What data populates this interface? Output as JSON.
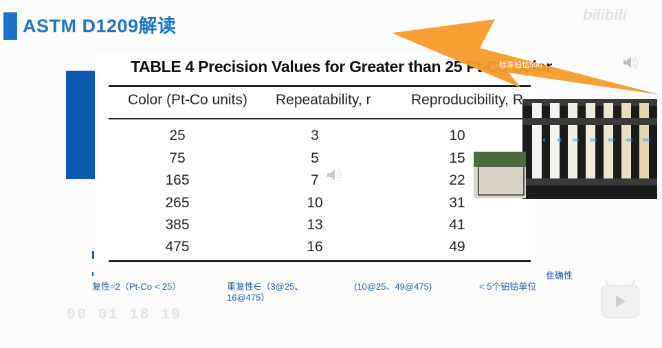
{
  "slide": {
    "title": "ASTM D1209解读",
    "watermark": "bilibili"
  },
  "table": {
    "title": "TABLE 4  Precision Values for Greater than 25 Pt-Co Color",
    "headers": [
      "Color (Pt-Co units)",
      "Repeatability, r",
      "Reproducibility, R"
    ],
    "rows": [
      [
        "25",
        "3",
        "10"
      ],
      [
        "75",
        "5",
        "15"
      ],
      [
        "165",
        "7",
        "22"
      ],
      [
        "265",
        "10",
        "31"
      ],
      [
        "385",
        "13",
        "41"
      ],
      [
        "475",
        "16",
        "49"
      ]
    ]
  },
  "annotation": {
    "arrow_label": "标准铂钴500"
  },
  "photo": {
    "tube_labels": [
      "0",
      "30",
      "100",
      "200",
      "300",
      "400",
      "500"
    ]
  },
  "bottom_notes": {
    "note1": "复性=2（Pt-Co < 25）",
    "note2": "重复性∈（3@25、16@475）",
    "note3": "(10@25、49@475)",
    "note4": "< 5个铂钴单位",
    "note5": "隹确性",
    "timestamp": "00 01 18 19"
  },
  "colors": {
    "accent": "#1f73c6",
    "shape_blue": "#0a5bb0",
    "arrow_orange": "#f59a2a"
  },
  "icons": {
    "speaker": "speaker-icon",
    "play": "play-icon"
  }
}
